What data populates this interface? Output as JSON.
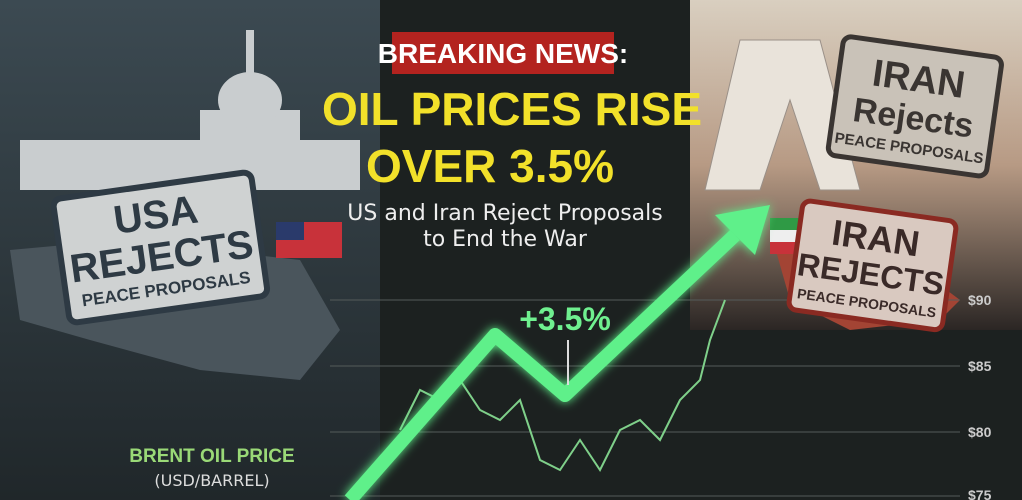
{
  "header": {
    "kicker": "BREAKING NEWS:",
    "title_lines": [
      "OIL PRICES RISE",
      "OVER 3.5%"
    ],
    "subtitle_lines": [
      "US and Iran Reject Proposals",
      "to End the War"
    ]
  },
  "stamps": [
    {
      "lines": [
        "USA",
        "REJECTS",
        "PEACE PROPOSALS"
      ]
    },
    {
      "lines": [
        "IRAN",
        "Rejects",
        "PEACE PROPOSALS"
      ]
    },
    {
      "lines": [
        "IRAN",
        "REJECTS",
        "PEACE PROPOSALS"
      ]
    }
  ],
  "chart": {
    "label_lines": [
      "BRENT OIL PRICE",
      "(USD/BARREL)"
    ],
    "annotation": "+3.5%",
    "axis_labels": [
      "$90",
      "$85",
      "$80",
      "$75"
    ]
  }
}
